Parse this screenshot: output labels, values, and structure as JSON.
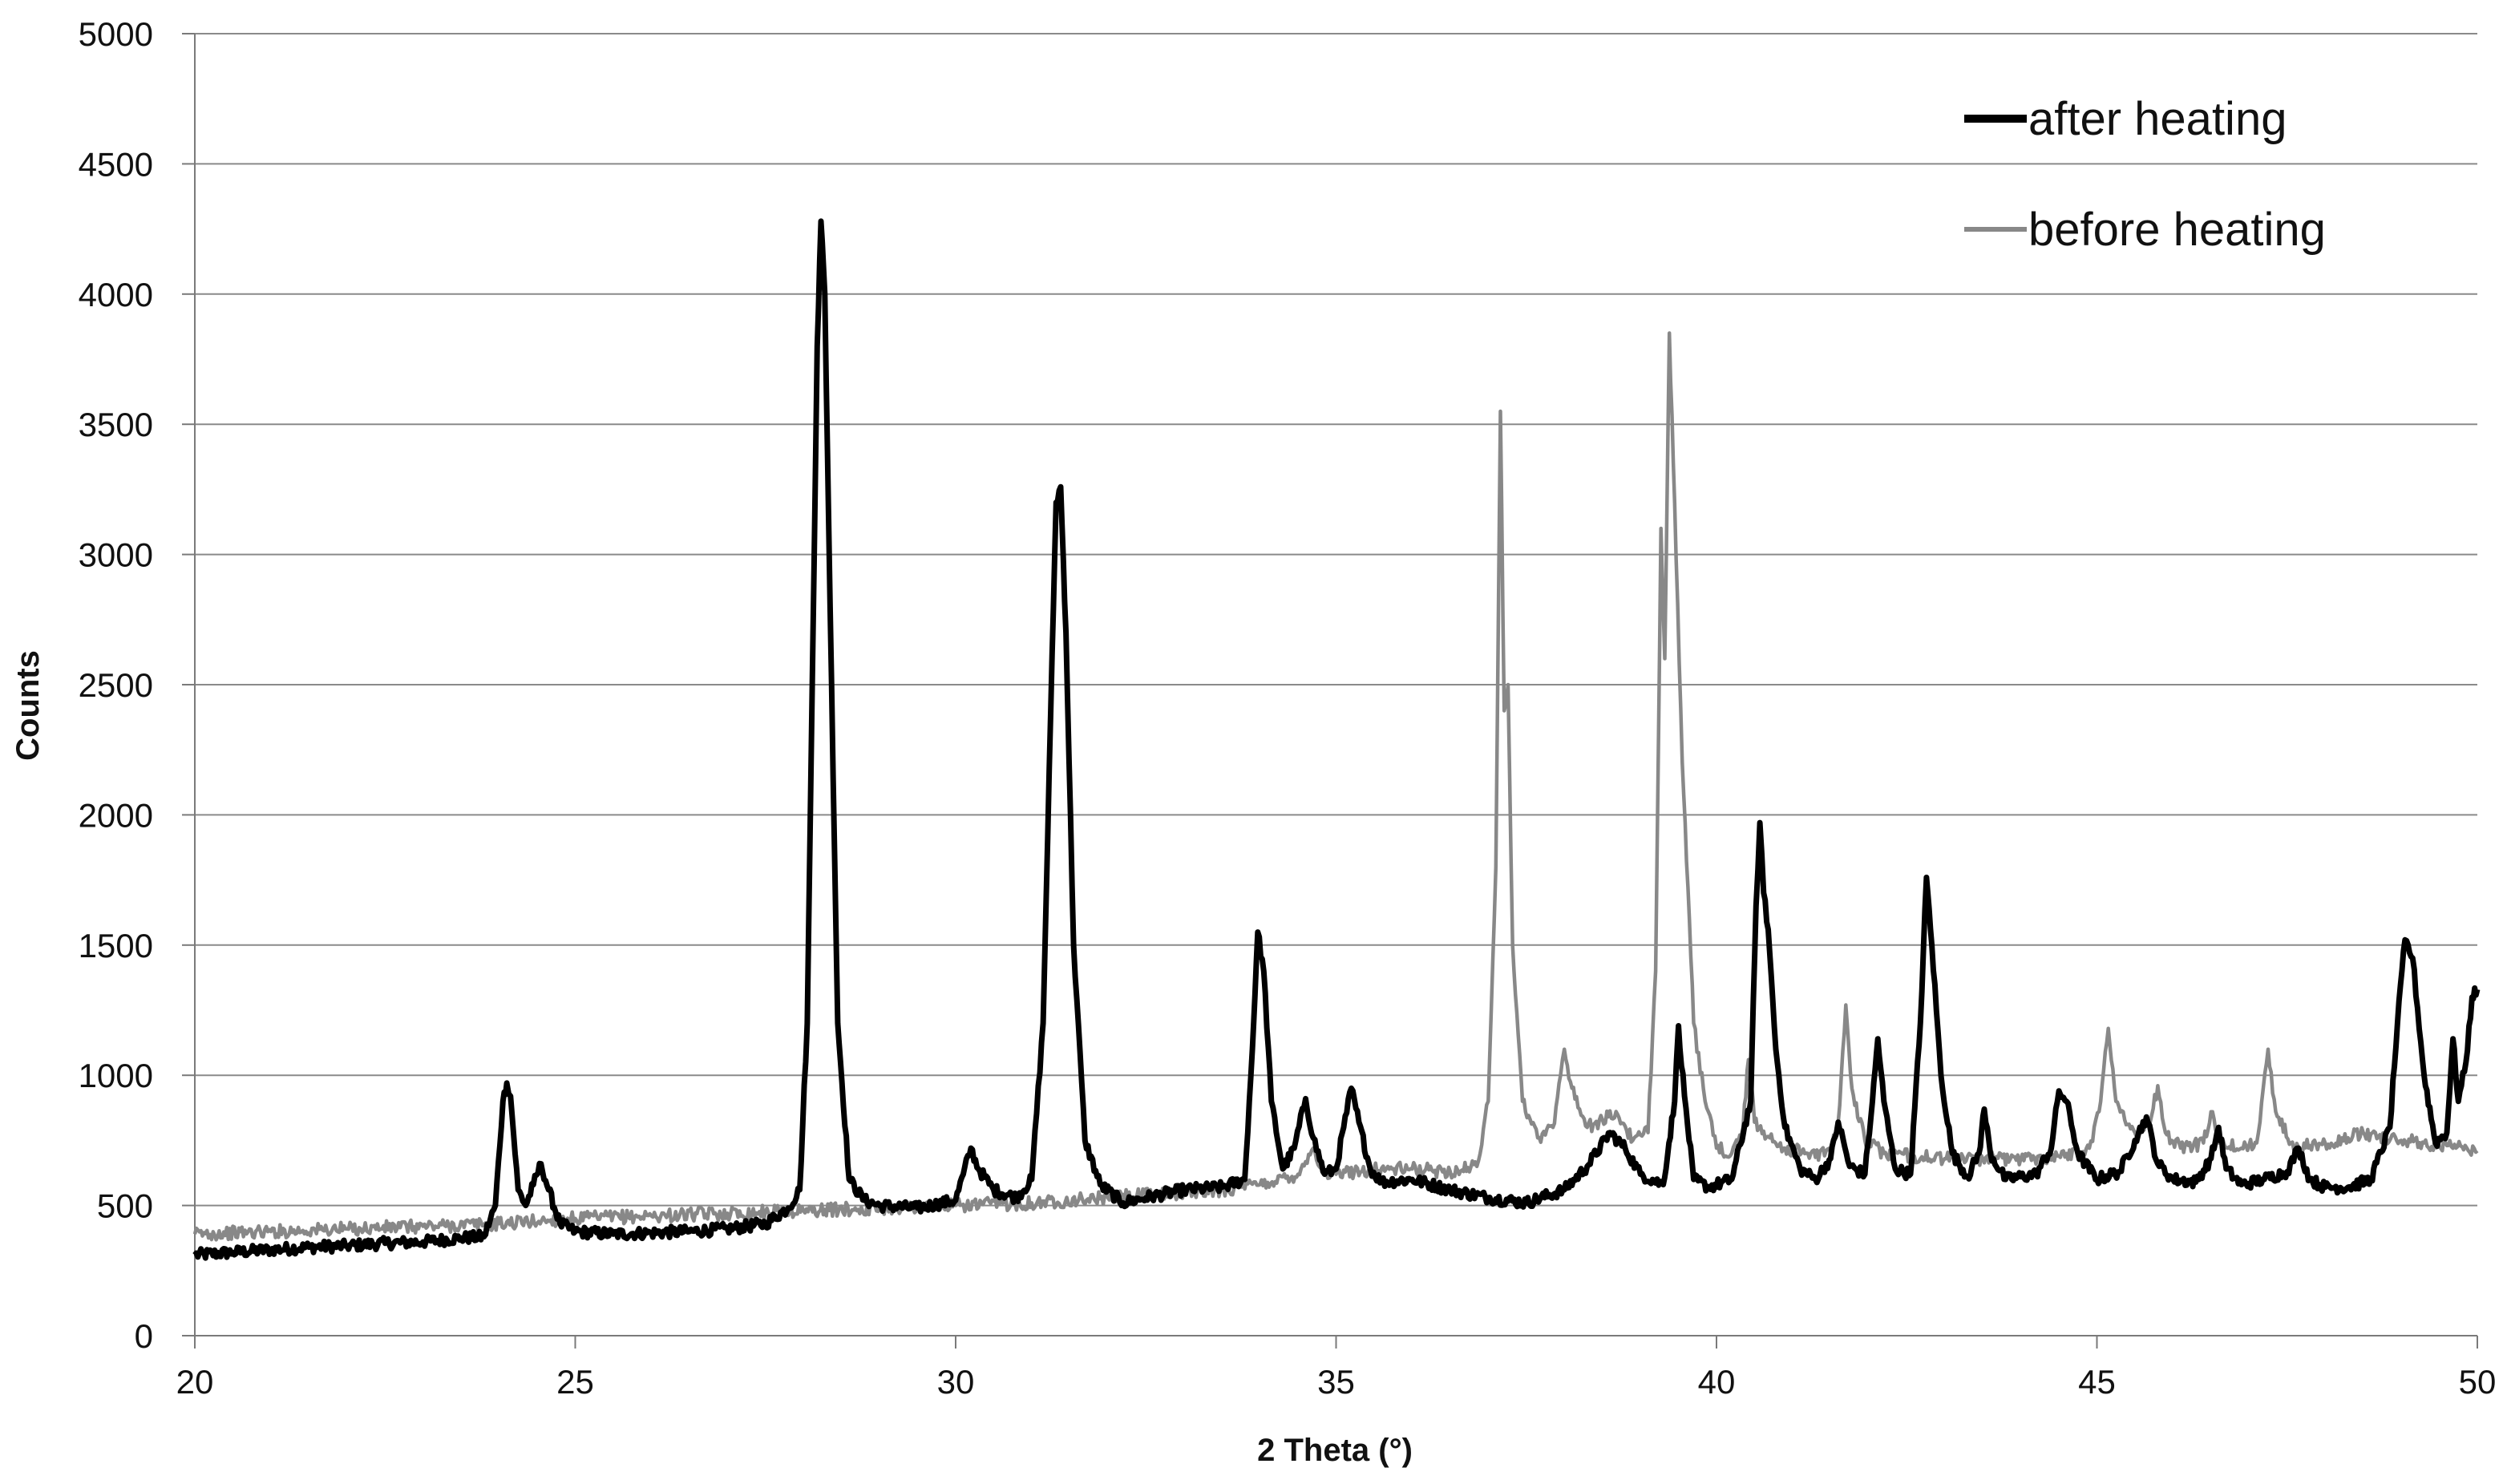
{
  "chart_data": {
    "type": "line",
    "xlabel": "2 Theta (°)",
    "ylabel": "Counts",
    "xlim": [
      20,
      50
    ],
    "ylim": [
      0,
      5000
    ],
    "xticks": [
      "20",
      "25",
      "30",
      "35",
      "40",
      "45",
      "50"
    ],
    "yticks": [
      "0",
      "500",
      "1000",
      "1500",
      "2000",
      "2500",
      "3000",
      "3500",
      "4000",
      "4500",
      "5000"
    ],
    "grid": "horizontal",
    "legend_position": "top-right",
    "series": [
      {
        "name": "after heating",
        "color": "#000000",
        "points": [
          [
            20.0,
            310
          ],
          [
            20.5,
            320
          ],
          [
            21.0,
            330
          ],
          [
            21.5,
            340
          ],
          [
            22.0,
            345
          ],
          [
            22.5,
            355
          ],
          [
            23.0,
            360
          ],
          [
            23.5,
            375
          ],
          [
            23.8,
            380
          ],
          [
            23.95,
            500
          ],
          [
            24.05,
            900
          ],
          [
            24.1,
            970
          ],
          [
            24.15,
            920
          ],
          [
            24.25,
            560
          ],
          [
            24.35,
            500
          ],
          [
            24.45,
            580
          ],
          [
            24.55,
            660
          ],
          [
            24.65,
            560
          ],
          [
            24.8,
            430
          ],
          [
            25.0,
            400
          ],
          [
            25.5,
            390
          ],
          [
            26.0,
            395
          ],
          [
            26.5,
            400
          ],
          [
            27.0,
            410
          ],
          [
            27.5,
            430
          ],
          [
            27.8,
            490
          ],
          [
            27.95,
            560
          ],
          [
            28.05,
            1200
          ],
          [
            28.12,
            2600
          ],
          [
            28.18,
            3800
          ],
          [
            28.23,
            4280
          ],
          [
            28.28,
            4000
          ],
          [
            28.35,
            2800
          ],
          [
            28.45,
            1200
          ],
          [
            28.6,
            600
          ],
          [
            28.8,
            520
          ],
          [
            29.0,
            500
          ],
          [
            29.5,
            490
          ],
          [
            30.0,
            520
          ],
          [
            30.1,
            620
          ],
          [
            30.2,
            720
          ],
          [
            30.3,
            640
          ],
          [
            30.5,
            560
          ],
          [
            30.8,
            530
          ],
          [
            31.0,
            600
          ],
          [
            31.15,
            1200
          ],
          [
            31.25,
            2400
          ],
          [
            31.32,
            3200
          ],
          [
            31.38,
            3260
          ],
          [
            31.45,
            2700
          ],
          [
            31.55,
            1500
          ],
          [
            31.7,
            750
          ],
          [
            31.9,
            580
          ],
          [
            32.2,
            510
          ],
          [
            32.5,
            530
          ],
          [
            33.0,
            560
          ],
          [
            33.5,
            570
          ],
          [
            33.8,
            600
          ],
          [
            33.9,
            1100
          ],
          [
            33.97,
            1550
          ],
          [
            34.05,
            1400
          ],
          [
            34.15,
            900
          ],
          [
            34.3,
            640
          ],
          [
            34.45,
            720
          ],
          [
            34.6,
            910
          ],
          [
            34.7,
            760
          ],
          [
            34.85,
            620
          ],
          [
            35.0,
            640
          ],
          [
            35.1,
            800
          ],
          [
            35.2,
            950
          ],
          [
            35.3,
            820
          ],
          [
            35.45,
            640
          ],
          [
            35.6,
            590
          ],
          [
            36.0,
            600
          ],
          [
            36.5,
            560
          ],
          [
            37.0,
            530
          ],
          [
            37.5,
            510
          ],
          [
            38.0,
            560
          ],
          [
            38.3,
            650
          ],
          [
            38.6,
            780
          ],
          [
            38.8,
            720
          ],
          [
            39.0,
            620
          ],
          [
            39.3,
            580
          ],
          [
            39.45,
            900
          ],
          [
            39.5,
            1190
          ],
          [
            39.58,
            920
          ],
          [
            39.7,
            600
          ],
          [
            39.9,
            570
          ],
          [
            40.2,
            600
          ],
          [
            40.45,
            900
          ],
          [
            40.52,
            1650
          ],
          [
            40.57,
            1970
          ],
          [
            40.62,
            1700
          ],
          [
            40.68,
            1560
          ],
          [
            40.78,
            1100
          ],
          [
            40.9,
            800
          ],
          [
            41.1,
            640
          ],
          [
            41.3,
            600
          ],
          [
            41.5,
            680
          ],
          [
            41.6,
            820
          ],
          [
            41.75,
            650
          ],
          [
            41.95,
            620
          ],
          [
            42.05,
            900
          ],
          [
            42.12,
            1140
          ],
          [
            42.2,
            900
          ],
          [
            42.35,
            640
          ],
          [
            42.55,
            620
          ],
          [
            42.68,
            1200
          ],
          [
            42.76,
            1760
          ],
          [
            42.83,
            1500
          ],
          [
            42.95,
            1000
          ],
          [
            43.1,
            700
          ],
          [
            43.3,
            610
          ],
          [
            43.45,
            700
          ],
          [
            43.52,
            870
          ],
          [
            43.6,
            700
          ],
          [
            43.8,
            600
          ],
          [
            44.2,
            620
          ],
          [
            44.4,
            720
          ],
          [
            44.5,
            940
          ],
          [
            44.6,
            900
          ],
          [
            44.75,
            700
          ],
          [
            45.0,
            600
          ],
          [
            45.3,
            630
          ],
          [
            45.5,
            750
          ],
          [
            45.65,
            840
          ],
          [
            45.8,
            660
          ],
          [
            46.0,
            600
          ],
          [
            46.3,
            590
          ],
          [
            46.5,
            680
          ],
          [
            46.6,
            800
          ],
          [
            46.7,
            640
          ],
          [
            46.9,
            580
          ],
          [
            47.2,
            600
          ],
          [
            47.5,
            630
          ],
          [
            47.65,
            720
          ],
          [
            47.8,
            600
          ],
          [
            48.0,
            570
          ],
          [
            48.3,
            570
          ],
          [
            48.6,
            600
          ],
          [
            48.85,
            800
          ],
          [
            48.95,
            1200
          ],
          [
            49.05,
            1520
          ],
          [
            49.15,
            1450
          ],
          [
            49.3,
            1000
          ],
          [
            49.45,
            740
          ],
          [
            49.6,
            780
          ],
          [
            49.68,
            1140
          ],
          [
            49.75,
            900
          ],
          [
            49.85,
            1050
          ],
          [
            49.93,
            1300
          ],
          [
            50.0,
            1330
          ]
        ]
      },
      {
        "name": "before heating",
        "color": "#888888",
        "points": [
          [
            20.0,
            390
          ],
          [
            21.0,
            400
          ],
          [
            22.0,
            410
          ],
          [
            23.0,
            420
          ],
          [
            24.0,
            430
          ],
          [
            25.0,
            450
          ],
          [
            26.0,
            460
          ],
          [
            27.0,
            470
          ],
          [
            28.0,
            480
          ],
          [
            29.0,
            490
          ],
          [
            30.0,
            500
          ],
          [
            31.0,
            510
          ],
          [
            32.0,
            530
          ],
          [
            33.0,
            550
          ],
          [
            33.5,
            560
          ],
          [
            34.0,
            580
          ],
          [
            34.5,
            620
          ],
          [
            34.7,
            720
          ],
          [
            34.85,
            620
          ],
          [
            35.0,
            620
          ],
          [
            35.5,
            640
          ],
          [
            36.0,
            640
          ],
          [
            36.5,
            630
          ],
          [
            36.85,
            650
          ],
          [
            37.0,
            900
          ],
          [
            37.1,
            1800
          ],
          [
            37.16,
            3550
          ],
          [
            37.21,
            2400
          ],
          [
            37.26,
            2500
          ],
          [
            37.32,
            1500
          ],
          [
            37.45,
            900
          ],
          [
            37.65,
            760
          ],
          [
            37.85,
            800
          ],
          [
            37.95,
            1000
          ],
          [
            38.0,
            1100
          ],
          [
            38.1,
            950
          ],
          [
            38.3,
            800
          ],
          [
            38.5,
            830
          ],
          [
            38.7,
            850
          ],
          [
            38.9,
            750
          ],
          [
            39.1,
            780
          ],
          [
            39.2,
            1400
          ],
          [
            39.27,
            3100
          ],
          [
            39.32,
            2600
          ],
          [
            39.38,
            3850
          ],
          [
            39.45,
            3200
          ],
          [
            39.55,
            2200
          ],
          [
            39.7,
            1200
          ],
          [
            39.85,
            900
          ],
          [
            40.0,
            720
          ],
          [
            40.2,
            700
          ],
          [
            40.35,
            800
          ],
          [
            40.42,
            1060
          ],
          [
            40.5,
            820
          ],
          [
            40.7,
            760
          ],
          [
            40.9,
            720
          ],
          [
            41.2,
            700
          ],
          [
            41.5,
            700
          ],
          [
            41.6,
            820
          ],
          [
            41.7,
            1270
          ],
          [
            41.78,
            950
          ],
          [
            41.95,
            750
          ],
          [
            42.2,
            700
          ],
          [
            42.6,
            690
          ],
          [
            43.0,
            680
          ],
          [
            43.5,
            680
          ],
          [
            44.0,
            680
          ],
          [
            44.5,
            690
          ],
          [
            44.9,
            720
          ],
          [
            45.05,
            900
          ],
          [
            45.15,
            1180
          ],
          [
            45.25,
            900
          ],
          [
            45.5,
            780
          ],
          [
            45.7,
            820
          ],
          [
            45.8,
            960
          ],
          [
            45.9,
            780
          ],
          [
            46.1,
            720
          ],
          [
            46.4,
            740
          ],
          [
            46.5,
            860
          ],
          [
            46.6,
            740
          ],
          [
            46.9,
            720
          ],
          [
            47.1,
            740
          ],
          [
            47.25,
            1100
          ],
          [
            47.35,
            860
          ],
          [
            47.55,
            740
          ],
          [
            47.8,
            730
          ],
          [
            48.0,
            740
          ],
          [
            48.3,
            760
          ],
          [
            48.5,
            780
          ],
          [
            48.8,
            760
          ],
          [
            49.0,
            750
          ],
          [
            49.3,
            740
          ],
          [
            49.6,
            730
          ],
          [
            50.0,
            710
          ]
        ]
      }
    ]
  }
}
